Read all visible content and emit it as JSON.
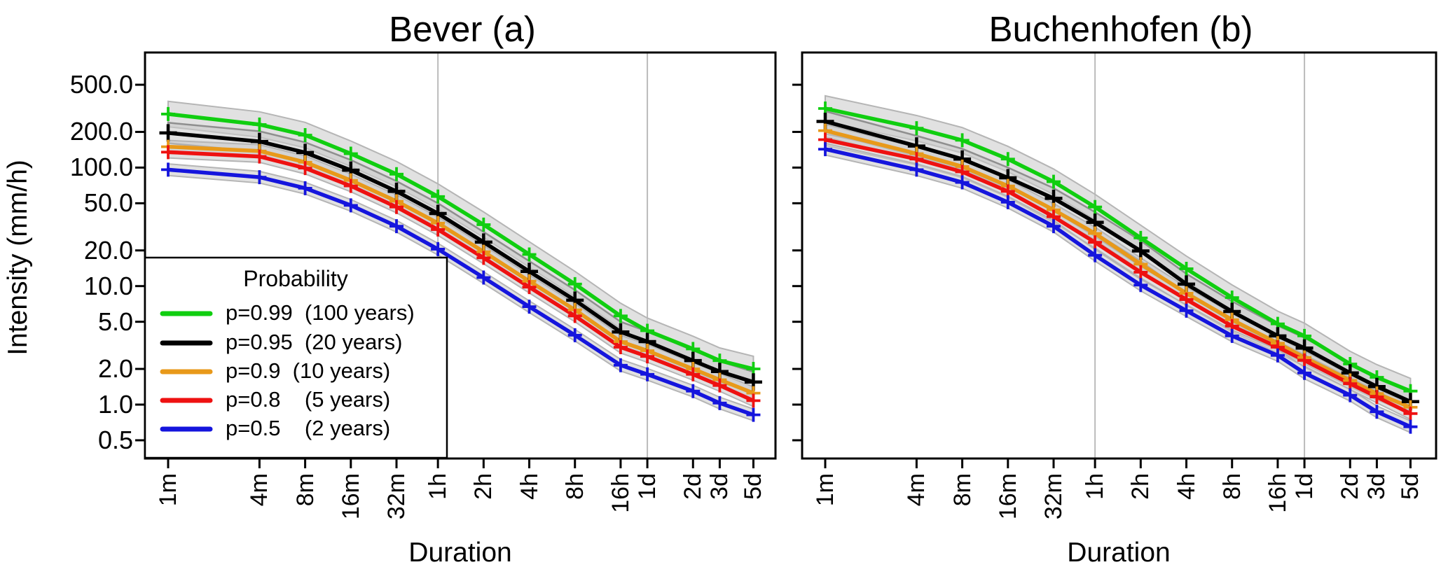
{
  "page": {
    "background": "#ffffff"
  },
  "legend": {
    "title": "Probability",
    "entries": [
      {
        "label": "p=0.99  (100 years)",
        "color": "#10CE10"
      },
      {
        "label": "p=0.95  (20 years)",
        "color": "#000000"
      },
      {
        "label": "p=0.9  (10 years)",
        "color": "#E8991A"
      },
      {
        "label": "p=0.8    (5 years)",
        "color": "#EE1111"
      },
      {
        "label": "p=0.5    (2 years)",
        "color": "#1515DD"
      }
    ]
  },
  "chart_data": [
    {
      "type": "line",
      "title": "Bever (a)",
      "xlabel": "Duration",
      "ylabel": "Intensity (mm/h)",
      "x_scale": "log",
      "y_scale": "log",
      "x_tick_labels": [
        "1m",
        "4m",
        "8m",
        "16m",
        "32m",
        "1h",
        "2h",
        "4h",
        "8h",
        "16h",
        "1d",
        "2d",
        "3d",
        "5d"
      ],
      "x_tick_minutes": [
        1,
        4,
        8,
        16,
        32,
        60,
        120,
        240,
        480,
        960,
        1440,
        2880,
        4320,
        7200
      ],
      "y_tick_labels": [
        "500.0",
        "200.0",
        "100.0",
        "50.0",
        "20.0",
        "10.0",
        "5.0",
        "2.0",
        "1.0",
        "0.5"
      ],
      "y_tick_values": [
        500,
        200,
        100,
        50,
        20,
        10,
        5,
        2,
        1,
        0.5
      ],
      "ylim": [
        0.45,
        750
      ],
      "show_y_tick_labels": true,
      "grid": "vertical-at-1h-1d",
      "gridline_minutes": [
        60,
        1440
      ],
      "legend_position": "bottom-left",
      "series": [
        {
          "name": "p=0.99",
          "return_period": "100 years",
          "color": "#10CE10",
          "band_factor": 1.28,
          "values": [
            283,
            231,
            188,
            131,
            88,
            57,
            33,
            18.5,
            10.4,
            5.6,
            4.2,
            2.95,
            2.35,
            2.0
          ]
        },
        {
          "name": "p=0.95",
          "return_period": "20 years",
          "color": "#000000",
          "band_factor": 1.22,
          "values": [
            196,
            166,
            134,
            95,
            63,
            41,
            23.5,
            13.3,
            7.6,
            4.1,
            3.4,
            2.35,
            1.9,
            1.55
          ]
        },
        {
          "name": "p=0.9",
          "return_period": "10 years",
          "color": "#E8991A",
          "band_factor": 1.13,
          "values": [
            150,
            138,
            111,
            78,
            52,
            34,
            19.5,
            11.0,
            6.3,
            3.4,
            2.85,
            2.0,
            1.62,
            1.25
          ]
        },
        {
          "name": "p=0.8",
          "return_period": "5 years",
          "color": "#EE1111",
          "band_factor": 1.12,
          "values": [
            135,
            124,
            99,
            70,
            46.5,
            30,
            17.3,
            9.8,
            5.6,
            3.05,
            2.55,
            1.8,
            1.45,
            1.08
          ]
        },
        {
          "name": "p=0.5",
          "return_period": "2 years",
          "color": "#1515DD",
          "band_factor": 1.12,
          "values": [
            96,
            83,
            67,
            48,
            32,
            20.5,
            11.8,
            6.7,
            3.85,
            2.15,
            1.8,
            1.3,
            1.03,
            0.82
          ]
        }
      ]
    },
    {
      "type": "line",
      "title": "Buchenhofen (b)",
      "xlabel": "Duration",
      "ylabel": "Intensity (mm/h)",
      "x_scale": "log",
      "y_scale": "log",
      "x_tick_labels": [
        "1m",
        "4m",
        "8m",
        "16m",
        "32m",
        "1h",
        "2h",
        "4h",
        "8h",
        "16h",
        "1d",
        "2d",
        "3d",
        "5d"
      ],
      "x_tick_minutes": [
        1,
        4,
        8,
        16,
        32,
        60,
        120,
        240,
        480,
        960,
        1440,
        2880,
        4320,
        7200
      ],
      "y_tick_labels": [
        "500.0",
        "200.0",
        "100.0",
        "50.0",
        "20.0",
        "10.0",
        "5.0",
        "2.0",
        "1.0",
        "0.5"
      ],
      "y_tick_values": [
        500,
        200,
        100,
        50,
        20,
        10,
        5,
        2,
        1,
        0.5
      ],
      "ylim": [
        0.45,
        750
      ],
      "show_y_tick_labels": false,
      "grid": "vertical-at-1h-1d",
      "gridline_minutes": [
        60,
        1440
      ],
      "legend_position": "none",
      "series": [
        {
          "name": "p=0.99",
          "return_period": "100 years",
          "color": "#10CE10",
          "band_factor": 1.28,
          "values": [
            315,
            215,
            170,
            118,
            76,
            46.5,
            25.5,
            14.0,
            8.0,
            4.8,
            3.8,
            2.2,
            1.7,
            1.3
          ]
        },
        {
          "name": "p=0.95",
          "return_period": "20 years",
          "color": "#000000",
          "band_factor": 1.22,
          "values": [
            245,
            152,
            118,
            82,
            55,
            34.5,
            19.8,
            10.4,
            6.1,
            3.8,
            3.0,
            1.85,
            1.42,
            1.06
          ]
        },
        {
          "name": "p=0.9",
          "return_period": "10 years",
          "color": "#E8991A",
          "band_factor": 1.13,
          "values": [
            205,
            131,
            102,
            70,
            44,
            27.8,
            15.3,
            8.7,
            5.2,
            3.3,
            2.5,
            1.6,
            1.24,
            0.95
          ]
        },
        {
          "name": "p=0.8",
          "return_period": "5 years",
          "color": "#EE1111",
          "band_factor": 1.12,
          "values": [
            172,
            118,
            92,
            63,
            38.5,
            23.4,
            13.1,
            7.7,
            4.6,
            3.05,
            2.36,
            1.5,
            1.16,
            0.84
          ]
        },
        {
          "name": "p=0.5",
          "return_period": "2 years",
          "color": "#1515DD",
          "band_factor": 1.12,
          "values": [
            143,
            96,
            75,
            51,
            32,
            18.2,
            10.2,
            6.2,
            3.8,
            2.6,
            1.85,
            1.2,
            0.87,
            0.65
          ]
        }
      ]
    }
  ]
}
